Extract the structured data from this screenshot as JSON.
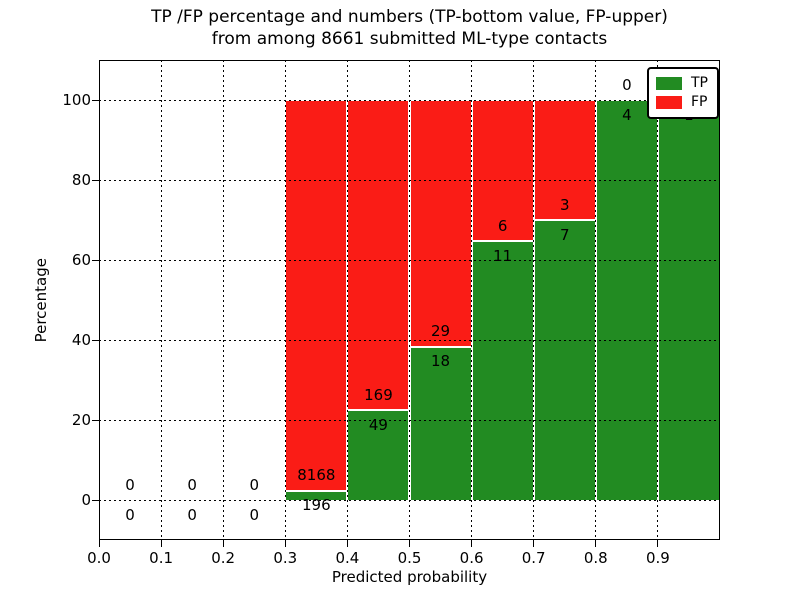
{
  "title": {
    "line1": "TP /FP percentage and numbers (TP-bottom value, FP-upper)",
    "line2": "from among 8661 submitted ML-type contacts"
  },
  "axes": {
    "xlabel": "Predicted probability",
    "ylabel": "Percentage"
  },
  "colors": {
    "tp": "#228b22",
    "fp": "#fa1c16",
    "grid": "#000000",
    "background": "#ffffff",
    "bar_edge": "#ffffff"
  },
  "chart_data": {
    "type": "bar",
    "variant": "stacked-normalized-percent",
    "title": "TP /FP percentage and numbers (TP-bottom value, FP-upper)\nfrom among 8661 submitted ML-type contacts",
    "xlabel": "Predicted probability",
    "ylabel": "Percentage",
    "xlim": [
      0.0,
      1.0
    ],
    "ylim": [
      -10,
      110
    ],
    "xticks": [
      "0.0",
      "0.1",
      "0.2",
      "0.3",
      "0.4",
      "0.5",
      "0.6",
      "0.7",
      "0.8",
      "0.9"
    ],
    "yticks": [
      0,
      20,
      40,
      60,
      80,
      100
    ],
    "grid": true,
    "bin_width": 0.1,
    "categories": [
      "0.0-0.1",
      "0.1-0.2",
      "0.2-0.3",
      "0.3-0.4",
      "0.4-0.5",
      "0.5-0.6",
      "0.6-0.7",
      "0.7-0.8",
      "0.8-0.9",
      "0.9-1.0"
    ],
    "series": [
      {
        "name": "TP",
        "color": "#228b22",
        "counts": [
          0,
          0,
          0,
          196,
          49,
          18,
          11,
          7,
          4,
          1
        ]
      },
      {
        "name": "FP",
        "color": "#fa1c16",
        "counts": [
          0,
          0,
          0,
          8168,
          169,
          29,
          6,
          3,
          0,
          0
        ]
      }
    ],
    "legend": {
      "position": "upper right",
      "entries": [
        "TP",
        "FP"
      ]
    }
  }
}
